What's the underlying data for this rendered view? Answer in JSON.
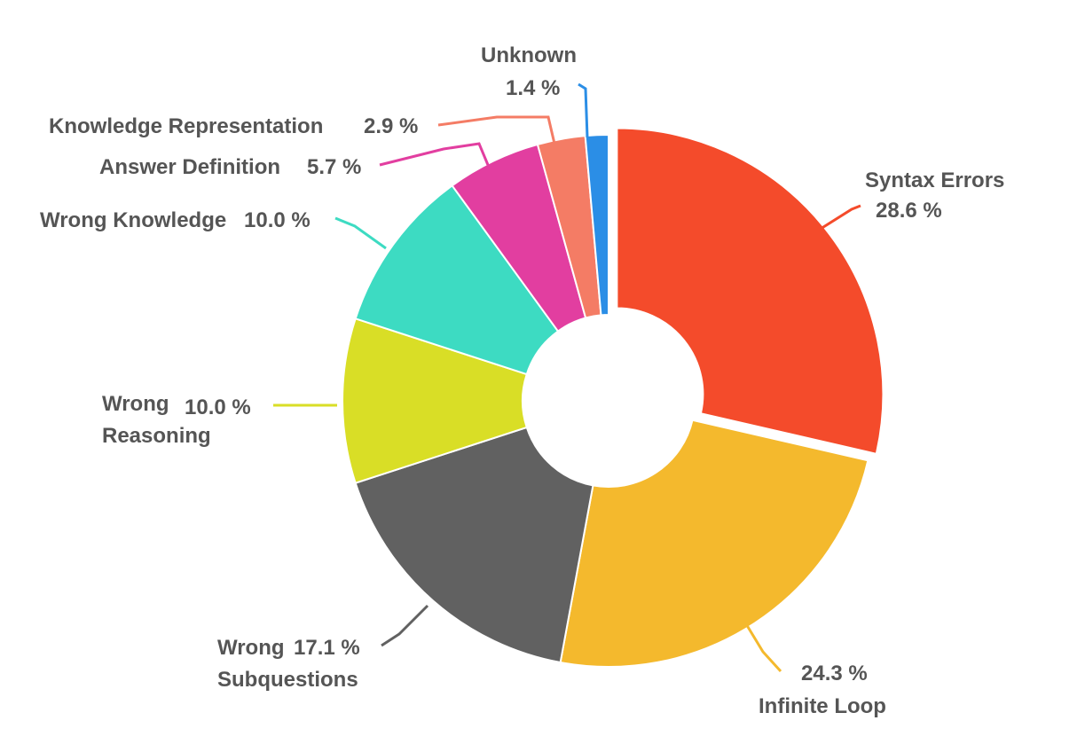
{
  "chart_data": {
    "type": "pie",
    "categories": [
      "Syntax Errors",
      "Infinite Loop",
      "Wrong Subquestions",
      "Wrong Reasoning",
      "Wrong Knowledge",
      "Answer Definition",
      "Knowledge Representation",
      "Unknown"
    ],
    "values": [
      28.6,
      24.3,
      17.1,
      10.0,
      10.0,
      5.7,
      2.9,
      1.4
    ],
    "value_labels": [
      "28.6 %",
      "24.3 %",
      "17.1 %",
      "10.0 %",
      "10.0 %",
      "5.7 %",
      "2.9 %",
      "1.4 %"
    ],
    "colors": [
      "#f44b2b",
      "#f4b92d",
      "#616161",
      "#d9de26",
      "#3ddbc2",
      "#e23ea0",
      "#f47c65",
      "#2b8ee6"
    ]
  }
}
